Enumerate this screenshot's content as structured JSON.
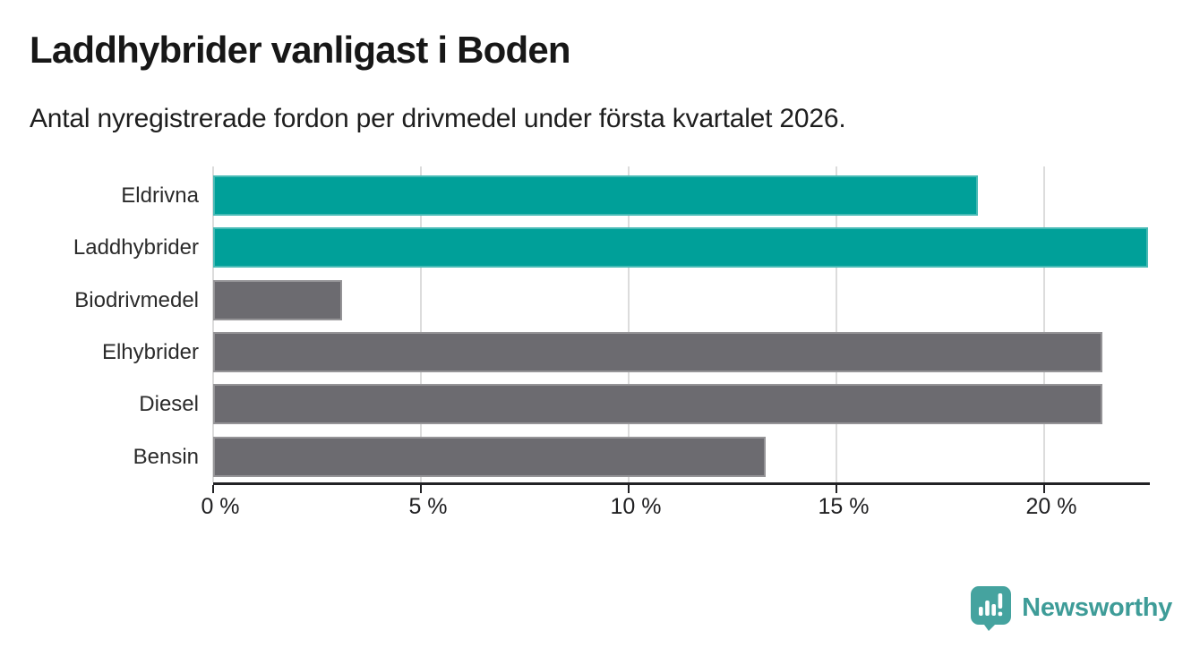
{
  "header": {
    "title": "Laddhybrider vanligast i Boden",
    "subtitle": "Antal nyregistrerade fordon per drivmedel under första kvartalet 2026."
  },
  "chart_data": {
    "type": "bar",
    "orientation": "horizontal",
    "title": "Laddhybrider vanligast i Boden",
    "subtitle": "Antal nyregistrerade fordon per drivmedel under första kvartalet 2026.",
    "categories": [
      "Eldrivna",
      "Laddhybrider",
      "Biodrivmedel",
      "Elhybrider",
      "Diesel",
      "Bensin"
    ],
    "values": [
      18.4,
      22.5,
      3.1,
      21.4,
      21.4,
      13.3
    ],
    "unit": "%",
    "xlim": [
      0,
      22.5
    ],
    "xticks": [
      0,
      5,
      10,
      15,
      20
    ],
    "xtick_labels": [
      "0 %",
      "5 %",
      "10 %",
      "15 %",
      "20 %"
    ],
    "bar_colors": [
      "#00A099",
      "#00A099",
      "#6C6B70",
      "#6C6B70",
      "#6C6B70",
      "#6C6B70"
    ],
    "highlight_color": "#00A099",
    "default_color": "#6C6B70",
    "gridline_color": "#dcdcdc",
    "grid": true,
    "legend": false
  },
  "branding": {
    "logo_text": "Newsworthy",
    "logo_color": "#45A39F",
    "text_color": "#3E9C98"
  }
}
